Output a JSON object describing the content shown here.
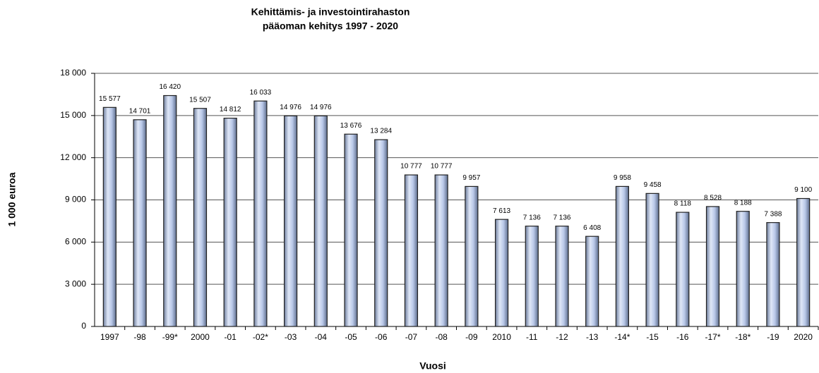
{
  "chart_data": {
    "type": "bar",
    "title": [
      "Kehittämis- ja investointirahaston",
      "pääoman kehitys 1997 - 2020"
    ],
    "x_label": "Vuosi",
    "y_label": "1 000 euroa",
    "categories": [
      "1997",
      "-98",
      "-99*",
      "2000",
      "-01",
      "-02*",
      "-03",
      "-04",
      "-05",
      "-06",
      "-07",
      "-08",
      "-09",
      "2010",
      "-11",
      "-12",
      "-13",
      "-14*",
      "-15",
      "-16",
      "-17*",
      "-18*",
      "-19",
      "2020"
    ],
    "values": [
      15577,
      14701,
      16420,
      15507,
      14812,
      16033,
      14976,
      14976,
      13676,
      13284,
      10777,
      10777,
      9957,
      7613,
      7136,
      7136,
      6408,
      9958,
      9458,
      8118,
      8528,
      8188,
      7388,
      9100
    ],
    "value_labels": [
      "15 577",
      "14 701",
      "16 420",
      "15 507",
      "14 812",
      "16 033",
      "14 976",
      "14 976",
      "13 676",
      "13 284",
      "10 777",
      "10 777",
      "9 957",
      "7 613",
      "7 136",
      "7 136",
      "6 408",
      "9 958",
      "9 458",
      "8 118",
      "8 528",
      "8 188",
      "7 388",
      "9 100"
    ],
    "color": "#a9b9dd",
    "ylim": [
      0,
      18000
    ],
    "yticks": [
      0,
      {
        "value": 3000,
        "label": "3 000"
      },
      {
        "value": 6000,
        "label": "6 000"
      },
      {
        "value": 9000,
        "label": "9 000"
      },
      {
        "value": 12000,
        "label": "12 000"
      },
      {
        "value": 15000,
        "label": "15 000"
      },
      {
        "value": 18000,
        "label": "18 000"
      }
    ],
    "grid": true
  }
}
